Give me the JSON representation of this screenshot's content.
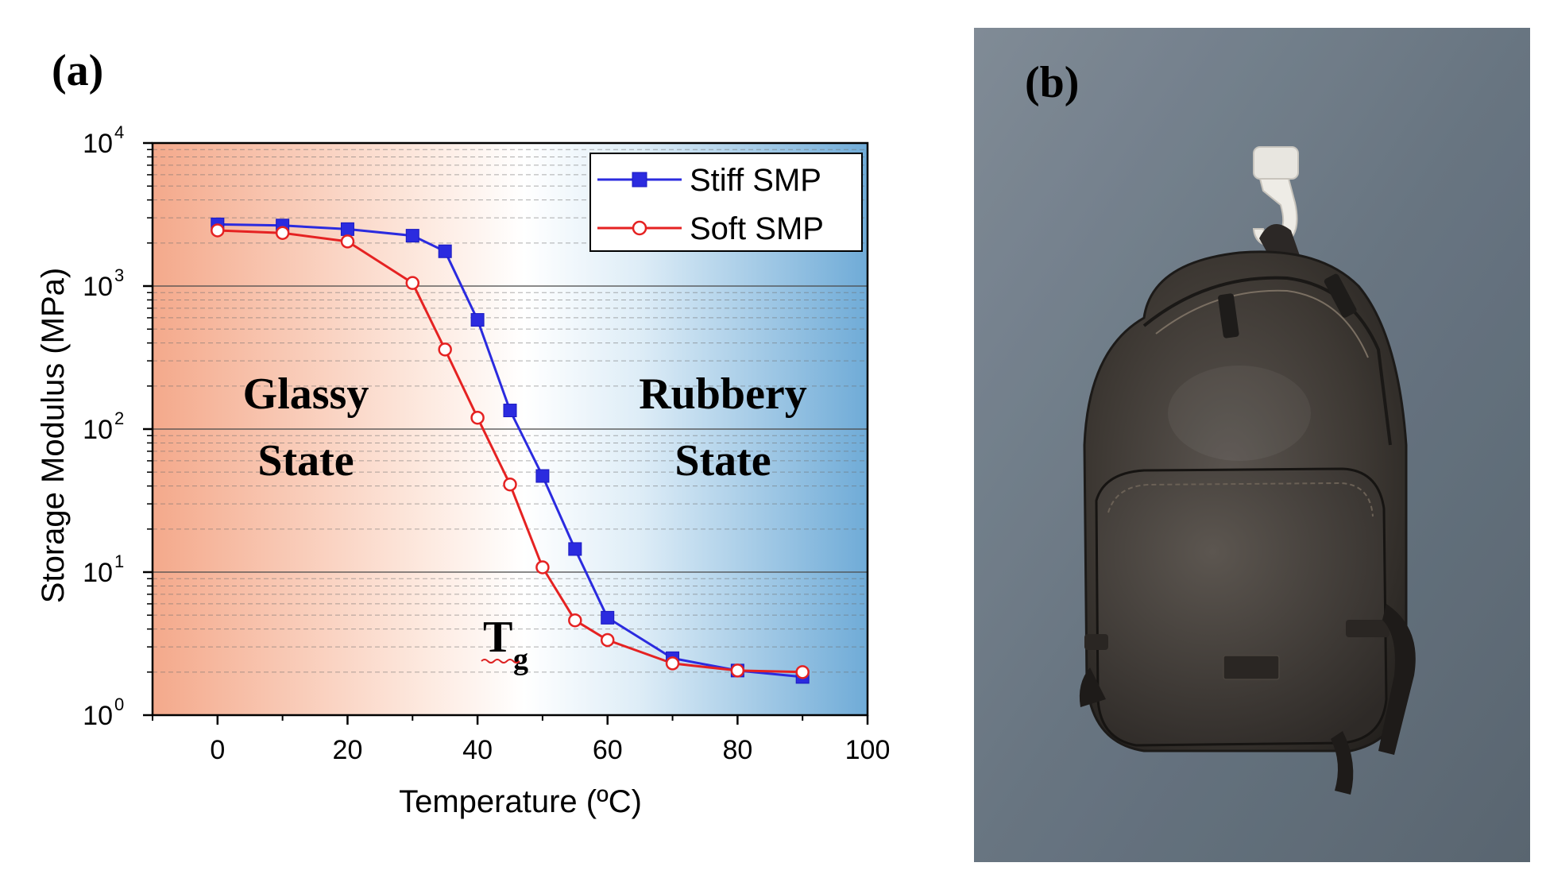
{
  "panel_a_label": "(a)",
  "panel_b_label": "(b)",
  "annotations": {
    "glassy": "Glassy",
    "glassy_state": "State",
    "rubbery": "Rubbery",
    "rubbery_state": "State",
    "tg_main": "T",
    "tg_sub": "g"
  },
  "photo_description_icon": "backpack-on-3d-printed-hook-photo",
  "colors": {
    "stiff": "#2b2bdf",
    "soft": "#e52222",
    "glassy_bg": "#f6b49a",
    "rubbery_bg": "#7fb5db"
  },
  "chart_data": {
    "type": "line",
    "title": "",
    "xlabel": "Temperature (ºC)",
    "ylabel": "Storage Modulus (MPa)",
    "xlim": [
      -10,
      100
    ],
    "ylim_log10": [
      0,
      4
    ],
    "yscale": "log",
    "xticks": [
      0,
      20,
      40,
      60,
      80,
      100
    ],
    "yticks": [
      {
        "base": "10",
        "exp": "0"
      },
      {
        "base": "10",
        "exp": "1"
      },
      {
        "base": "10",
        "exp": "2"
      },
      {
        "base": "10",
        "exp": "3"
      },
      {
        "base": "10",
        "exp": "4"
      }
    ],
    "legend_position": "top-right",
    "series": [
      {
        "name": "Stiff SMP",
        "marker": "filled-square",
        "x": [
          0,
          10,
          20,
          30,
          35,
          40,
          45,
          50,
          55,
          60,
          70,
          80,
          90
        ],
        "y": [
          2700,
          2650,
          2500,
          2250,
          1750,
          580,
          135,
          47,
          14.5,
          4.8,
          2.5,
          2.05,
          1.85
        ]
      },
      {
        "name": "Soft SMP",
        "marker": "open-circle",
        "x": [
          0,
          10,
          20,
          30,
          35,
          40,
          45,
          50,
          55,
          60,
          70,
          80,
          90
        ],
        "y": [
          2450,
          2350,
          2050,
          1050,
          360,
          120,
          41,
          10.8,
          4.6,
          3.35,
          2.3,
          2.05,
          2.0
        ]
      }
    ]
  }
}
